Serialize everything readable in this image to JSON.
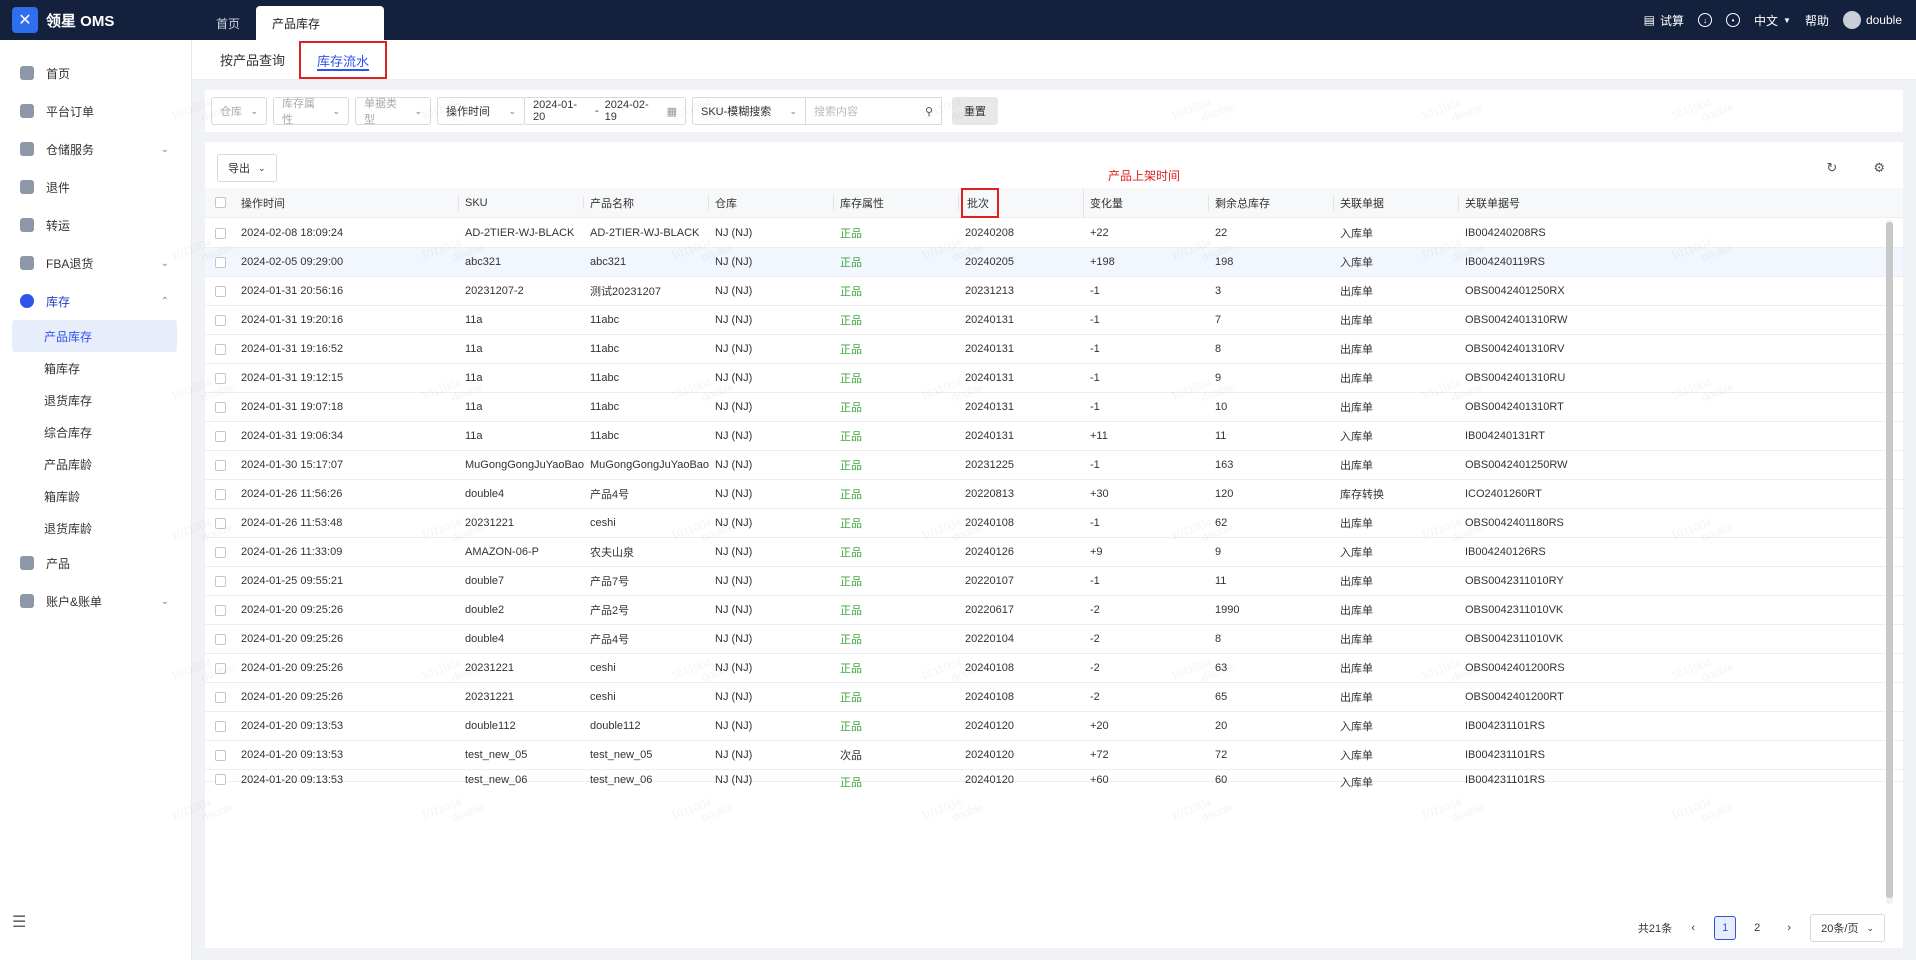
{
  "app": {
    "logo_text": "领星 OMS"
  },
  "header": {
    "tabs": [
      {
        "label": "首页"
      },
      {
        "label": "产品库存"
      }
    ],
    "right": {
      "trial": "试算",
      "language": "中文",
      "help": "帮助",
      "user": "double"
    }
  },
  "sidebar": {
    "items": [
      {
        "label": "首页"
      },
      {
        "label": "平台订单"
      },
      {
        "label": "仓储服务"
      },
      {
        "label": "退件"
      },
      {
        "label": "转运"
      },
      {
        "label": "FBA退货"
      },
      {
        "label": "库存"
      },
      {
        "label": "产品"
      },
      {
        "label": "账户&账单"
      }
    ],
    "sub_items": [
      {
        "label": "产品库存"
      },
      {
        "label": "箱库存"
      },
      {
        "label": "退货库存"
      },
      {
        "label": "综合库存"
      },
      {
        "label": "产品库龄"
      },
      {
        "label": "箱库龄"
      },
      {
        "label": "退货库龄"
      }
    ]
  },
  "subtabs": [
    {
      "label": "按产品查询"
    },
    {
      "label": "库存流水"
    }
  ],
  "filters": {
    "warehouse": "仓库",
    "attr": "库存属性",
    "doc_type": "单据类型",
    "time_type": "操作时间",
    "date_start": "2024-01-20",
    "date_sep": "-",
    "date_end": "2024-02-19",
    "search_type": "SKU-模糊搜索",
    "search_placeholder": "搜索内容",
    "reset": "重置"
  },
  "toolbar": {
    "export": "导出",
    "annotation": "产品上架时间"
  },
  "table": {
    "headers": {
      "time": "操作时间",
      "sku": "SKU",
      "name": "产品名称",
      "wh": "仓库",
      "attr": "库存属性",
      "batch": "批次",
      "chg": "变化量",
      "rem": "剩余总库存",
      "doc": "关联单据",
      "docno": "关联单据号"
    },
    "rows": [
      {
        "time": "2024-02-08 18:09:24",
        "sku": "AD-2TIER-WJ-BLACK",
        "name": "AD-2TIER-WJ-BLACK",
        "wh": "NJ (NJ)",
        "attr": "正品",
        "batch": "20240208",
        "chg": "+22",
        "rem": "22",
        "doc": "入库单",
        "docno": "IB004240208RS"
      },
      {
        "time": "2024-02-05 09:29:00",
        "sku": "abc321",
        "name": "abc321",
        "wh": "NJ (NJ)",
        "attr": "正品",
        "batch": "20240205",
        "chg": "+198",
        "rem": "198",
        "doc": "入库单",
        "docno": "IB004240119RS"
      },
      {
        "time": "2024-01-31 20:56:16",
        "sku": "20231207-2",
        "name": "测试20231207",
        "wh": "NJ (NJ)",
        "attr": "正品",
        "batch": "20231213",
        "chg": "-1",
        "rem": "3",
        "doc": "出库单",
        "docno": "OBS0042401250RX"
      },
      {
        "time": "2024-01-31 19:20:16",
        "sku": "11a",
        "name": "11abc",
        "wh": "NJ (NJ)",
        "attr": "正品",
        "batch": "20240131",
        "chg": "-1",
        "rem": "7",
        "doc": "出库单",
        "docno": "OBS0042401310RW"
      },
      {
        "time": "2024-01-31 19:16:52",
        "sku": "11a",
        "name": "11abc",
        "wh": "NJ (NJ)",
        "attr": "正品",
        "batch": "20240131",
        "chg": "-1",
        "rem": "8",
        "doc": "出库单",
        "docno": "OBS0042401310RV"
      },
      {
        "time": "2024-01-31 19:12:15",
        "sku": "11a",
        "name": "11abc",
        "wh": "NJ (NJ)",
        "attr": "正品",
        "batch": "20240131",
        "chg": "-1",
        "rem": "9",
        "doc": "出库单",
        "docno": "OBS0042401310RU"
      },
      {
        "time": "2024-01-31 19:07:18",
        "sku": "11a",
        "name": "11abc",
        "wh": "NJ (NJ)",
        "attr": "正品",
        "batch": "20240131",
        "chg": "-1",
        "rem": "10",
        "doc": "出库单",
        "docno": "OBS0042401310RT"
      },
      {
        "time": "2024-01-31 19:06:34",
        "sku": "11a",
        "name": "11abc",
        "wh": "NJ (NJ)",
        "attr": "正品",
        "batch": "20240131",
        "chg": "+11",
        "rem": "11",
        "doc": "入库单",
        "docno": "IB004240131RT"
      },
      {
        "time": "2024-01-30 15:17:07",
        "sku": "MuGongGongJuYaoBao",
        "name": "MuGongGongJuYaoBao",
        "wh": "NJ (NJ)",
        "attr": "正品",
        "batch": "20231225",
        "chg": "-1",
        "rem": "163",
        "doc": "出库单",
        "docno": "OBS0042401250RW"
      },
      {
        "time": "2024-01-26 11:56:26",
        "sku": "double4",
        "name": "产品4号",
        "wh": "NJ (NJ)",
        "attr": "正品",
        "batch": "20220813",
        "chg": "+30",
        "rem": "120",
        "doc": "库存转换",
        "docno": "ICO2401260RT"
      },
      {
        "time": "2024-01-26 11:53:48",
        "sku": "20231221",
        "name": "ceshi",
        "wh": "NJ (NJ)",
        "attr": "正品",
        "batch": "20240108",
        "chg": "-1",
        "rem": "62",
        "doc": "出库单",
        "docno": "OBS0042401180RS"
      },
      {
        "time": "2024-01-26 11:33:09",
        "sku": "AMAZON-06-P",
        "name": "农夫山泉",
        "wh": "NJ (NJ)",
        "attr": "正品",
        "batch": "20240126",
        "chg": "+9",
        "rem": "9",
        "doc": "入库单",
        "docno": "IB004240126RS"
      },
      {
        "time": "2024-01-25 09:55:21",
        "sku": "double7",
        "name": "产品7号",
        "wh": "NJ (NJ)",
        "attr": "正品",
        "batch": "20220107",
        "chg": "-1",
        "rem": "11",
        "doc": "出库单",
        "docno": "OBS0042311010RY"
      },
      {
        "time": "2024-01-20 09:25:26",
        "sku": "double2",
        "name": "产品2号",
        "wh": "NJ (NJ)",
        "attr": "正品",
        "batch": "20220617",
        "chg": "-2",
        "rem": "1990",
        "doc": "出库单",
        "docno": "OBS0042311010VK"
      },
      {
        "time": "2024-01-20 09:25:26",
        "sku": "double4",
        "name": "产品4号",
        "wh": "NJ (NJ)",
        "attr": "正品",
        "batch": "20220104",
        "chg": "-2",
        "rem": "8",
        "doc": "出库单",
        "docno": "OBS0042311010VK"
      },
      {
        "time": "2024-01-20 09:25:26",
        "sku": "20231221",
        "name": "ceshi",
        "wh": "NJ (NJ)",
        "attr": "正品",
        "batch": "20240108",
        "chg": "-2",
        "rem": "63",
        "doc": "出库单",
        "docno": "OBS0042401200RS"
      },
      {
        "time": "2024-01-20 09:25:26",
        "sku": "20231221",
        "name": "ceshi",
        "wh": "NJ (NJ)",
        "attr": "正品",
        "batch": "20240108",
        "chg": "-2",
        "rem": "65",
        "doc": "出库单",
        "docno": "OBS0042401200RT"
      },
      {
        "time": "2024-01-20 09:13:53",
        "sku": "double112",
        "name": "double112",
        "wh": "NJ (NJ)",
        "attr": "正品",
        "batch": "20240120",
        "chg": "+20",
        "rem": "20",
        "doc": "入库单",
        "docno": "IB004231101RS"
      },
      {
        "time": "2024-01-20 09:13:53",
        "sku": "test_new_05",
        "name": "test_new_05",
        "wh": "NJ (NJ)",
        "attr": "次品",
        "batch": "20240120",
        "chg": "+72",
        "rem": "72",
        "doc": "入库单",
        "docno": "IB004231101RS"
      },
      {
        "time": "2024-01-20 09:13:53",
        "sku": "test_new_06",
        "name": "test_new_06",
        "wh": "NJ (NJ)",
        "attr": "正品",
        "batch": "20240120",
        "chg": "+60",
        "rem": "60",
        "doc": "入库单",
        "docno": "IB004231101RS"
      }
    ]
  },
  "pagination": {
    "total": "共21条",
    "pages": [
      "1",
      "2"
    ],
    "page_size": "20条/页"
  },
  "watermark": {
    "text1": "1011004",
    "text2": "double"
  },
  "colors": {
    "header_bg": "#14213d",
    "accent": "#2f54eb",
    "annotation": "#e02020",
    "good": "#3aa83a"
  }
}
